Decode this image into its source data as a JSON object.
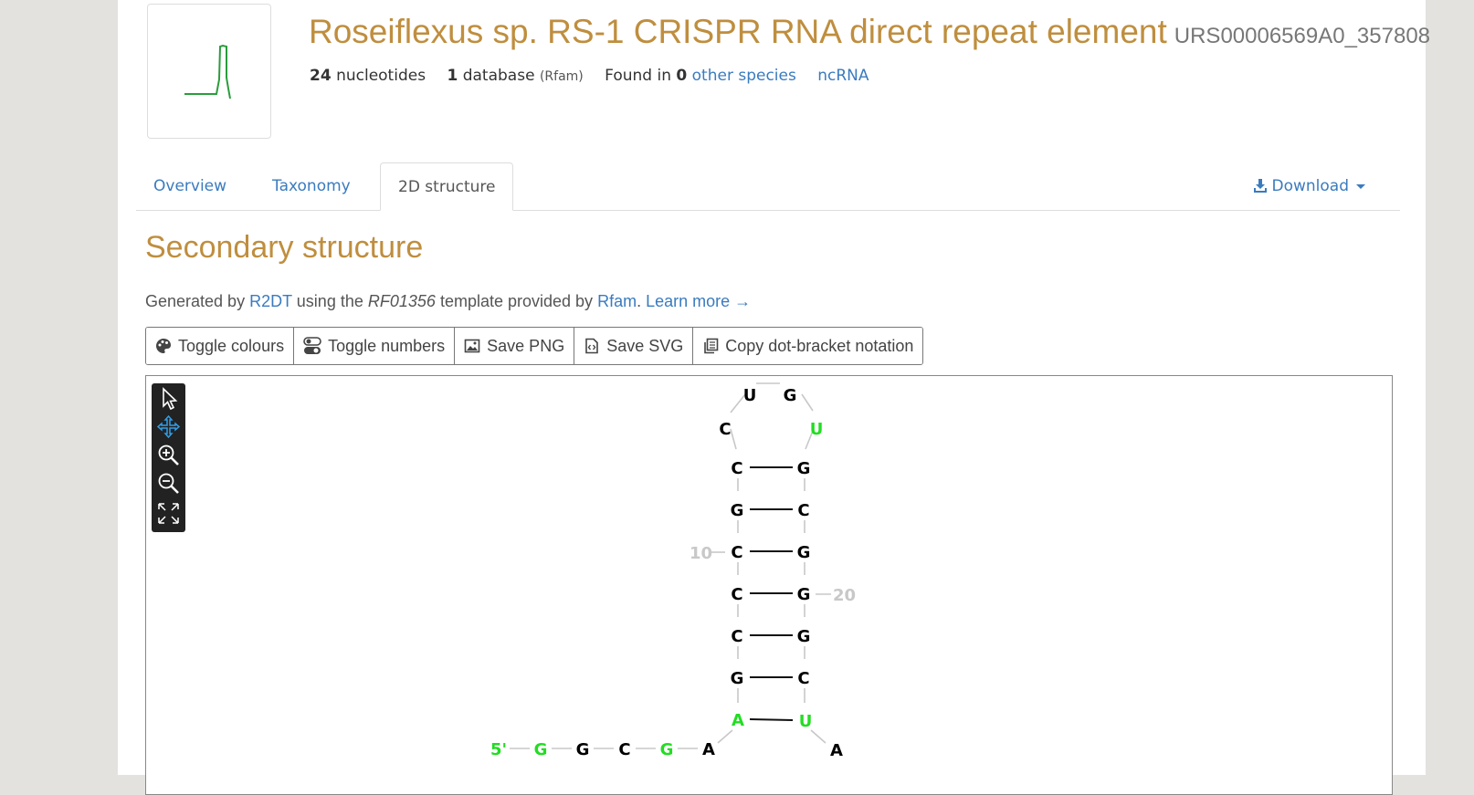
{
  "header": {
    "title": "Roseiflexus sp. RS-1 CRISPR RNA direct repeat element",
    "urs_id": "URS00006569A0_357808",
    "nucleotide_count": "24",
    "nucleotides_label": "nucleotides",
    "database_count": "1",
    "database_label": "database",
    "database_name": "(Rfam)",
    "found_in_label": "Found in",
    "species_count": "0",
    "other_species_link": "other species",
    "rna_type_link": "ncRNA"
  },
  "tabs": {
    "overview": "Overview",
    "taxonomy": "Taxonomy",
    "structure": "2D structure",
    "download": "Download"
  },
  "section": {
    "title": "Secondary structure",
    "generated_prefix": "Generated by",
    "r2dt_link": "R2DT",
    "using_the": "using the",
    "template_id": "RF01356",
    "template_provided": "template provided by",
    "rfam_link": "Rfam",
    "learn_more": "Learn more →"
  },
  "buttons": {
    "toggle_colours": "Toggle colours",
    "toggle_numbers": "Toggle numbers",
    "save_png": "Save PNG",
    "save_svg": "Save SVG",
    "copy_dot_bracket": "Copy dot-bracket notation"
  },
  "structure": {
    "five_prime": "5'",
    "number_10": "10",
    "number_20": "20",
    "nt": {
      "loop_u": "U",
      "loop_g": "G",
      "loop_c": "C",
      "loop_u2": "U",
      "l1": "C",
      "r1": "G",
      "l2": "G",
      "r2": "C",
      "l3": "C",
      "r3": "G",
      "l4": "C",
      "r4": "G",
      "l5": "C",
      "r5": "G",
      "l6": "G",
      "r6": "C",
      "l7": "A",
      "r7": "U",
      "t1": "G",
      "t2": "G",
      "t3": "C",
      "t4": "G",
      "t5": "A",
      "tr": "A"
    },
    "colors": {
      "default": "#000000",
      "highlight": "#22dd22",
      "number": "#c8c8c8"
    }
  }
}
